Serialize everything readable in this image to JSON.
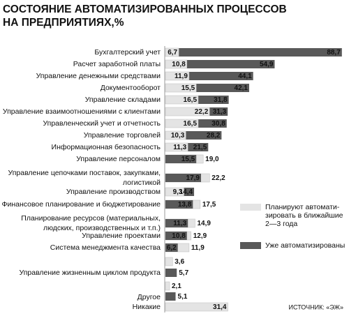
{
  "chart_data": {
    "type": "overlap-hbar",
    "title": [
      "СОСТОЯНИЕ АВТОМАТИЗИРОВАННЫХ ПРОЦЕССОВ",
      "НА ПРЕДПРИЯТИЯХ,%"
    ],
    "source": "ИСТОЧНИК: «ЭЖ»",
    "categories": [
      [
        "Бухгалтерский учет"
      ],
      [
        "Расчет заработной платы"
      ],
      [
        "Управление денежными средствами"
      ],
      [
        "Документооборот"
      ],
      [
        "Управление складами"
      ],
      [
        "Управление взаимоотношениями с клиентами"
      ],
      [
        "Управленческий учет и отчетность"
      ],
      [
        "Управление торговлей"
      ],
      [
        "Информационная безопасность"
      ],
      [
        "Управление персоналом"
      ],
      [
        "Управление цепочками поставок, закупками,",
        "логистикой"
      ],
      [
        "Управление производством"
      ],
      [
        "Финансовое планирование и бюджетирование"
      ],
      [
        "Планирование ресурсов (материальных,",
        "людских, производственных и т.п.)"
      ],
      [
        "Управление проектами"
      ],
      [
        "Система менеджмента качества"
      ],
      [
        "Управление жизненным циклом продукта"
      ],
      [
        "Другое"
      ],
      [
        "Никакие"
      ]
    ],
    "series": [
      {
        "name": [
          "Планируют автомати-",
          "зировать в ближайшие",
          "2—3 года"
        ],
        "color": "#e4e4e4",
        "values": [
          6.7,
          10.8,
          11.9,
          15.5,
          16.5,
          22.2,
          16.5,
          10.3,
          11.3,
          19.0,
          22.2,
          9.3,
          17.5,
          14.9,
          12.9,
          11.9,
          3.6,
          2.1,
          31.4
        ],
        "value_labels": [
          "6,7",
          "10,8",
          "11,9",
          "15,5",
          "16,5",
          "22,2",
          "16,5",
          "10,3",
          "11,3",
          "19,0",
          "22,2",
          "9,3",
          "17,5",
          "14,9",
          "12,9",
          "11,9",
          "3,6",
          "2,1",
          "31,4"
        ]
      },
      {
        "name": [
          "Уже автоматизированы"
        ],
        "color": "#595959",
        "values": [
          88.7,
          54.9,
          44.1,
          42.1,
          31.8,
          31.3,
          30.8,
          28.2,
          21.5,
          15.5,
          17.9,
          14.4,
          13.8,
          11.3,
          10.8,
          6.2,
          5.7,
          5.1,
          null
        ],
        "value_labels": [
          "88,7",
          "54,9",
          "44,1",
          "42,1",
          "31,8",
          "31,3",
          "30,8",
          "28,2",
          "21,5",
          "15,5",
          "17,9",
          "14,4",
          "13,8",
          "11,3",
          "10,8",
          "6,2",
          "5,7",
          "5,1",
          null
        ]
      }
    ]
  }
}
